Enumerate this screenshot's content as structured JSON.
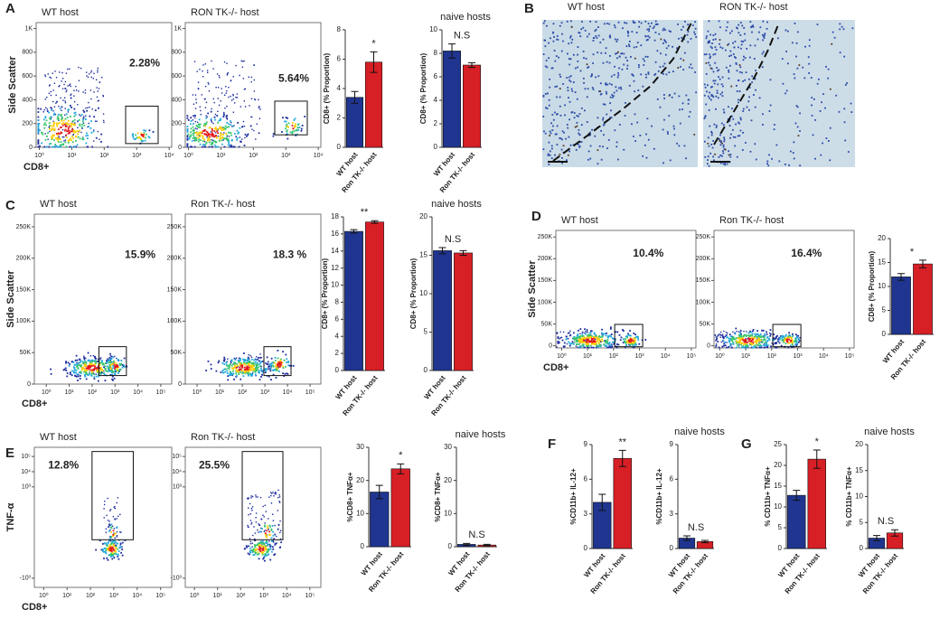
{
  "panel_labels": [
    "A",
    "B",
    "C",
    "D",
    "E",
    "F",
    "G"
  ],
  "micrographs": [
    {
      "title": "WT host"
    },
    {
      "title": "RON TK-/- host"
    }
  ],
  "chart_data": [
    {
      "type": "flow",
      "title": "WT host",
      "gate_label": "2.28%",
      "xlabel": "CD8+",
      "ylabel": "Side Scatter",
      "xscale": "log",
      "xlim": [
        0.8,
        12000
      ],
      "xticks": [
        {
          "value": 1,
          "label": "10⁰"
        },
        {
          "value": 10,
          "label": "10¹"
        },
        {
          "value": 100,
          "label": "10²"
        },
        {
          "value": 1000,
          "label": "10³"
        },
        {
          "value": 10000,
          "label": "10⁴"
        }
      ],
      "ylim": [
        0,
        1050
      ],
      "yticks": [
        0,
        200,
        400,
        600,
        800,
        {
          "value": 1000,
          "label": "1K"
        }
      ]
    },
    {
      "type": "flow",
      "title": "RON TK-/- host",
      "gate_label": "5.64%",
      "xscale": "log",
      "xlim": [
        0.8,
        12000
      ],
      "xticks": [
        {
          "value": 1,
          "label": "10⁰"
        },
        {
          "value": 10,
          "label": "10¹"
        },
        {
          "value": 100,
          "label": "10²"
        },
        {
          "value": 1000,
          "label": "10³"
        },
        {
          "value": 10000,
          "label": "10⁴"
        }
      ],
      "ylim": [
        0,
        1050
      ],
      "yticks": [
        0,
        200,
        400,
        600,
        800,
        {
          "value": 1000,
          "label": "1K"
        }
      ]
    },
    {
      "type": "bar",
      "ylabel": "CD8+ (% Proportion)",
      "categories": [
        "WT host",
        "Ron TK-/- host"
      ],
      "values": [
        3.4,
        5.8
      ],
      "errors": [
        0.4,
        0.7
      ],
      "colors": [
        "#1f3590",
        "#d71f26"
      ],
      "ylim": [
        0,
        8
      ],
      "yticks": [
        0,
        2,
        4,
        6,
        8
      ],
      "annotation": "*"
    },
    {
      "type": "bar",
      "title": "naive hosts",
      "ylabel": "CD8+ (% Proportion)",
      "categories": [
        "WT host",
        "Ron TK-/- host"
      ],
      "values": [
        8.2,
        7.0
      ],
      "errors": [
        0.6,
        0.2
      ],
      "colors": [
        "#1f3590",
        "#d71f26"
      ],
      "ylim": [
        0,
        10
      ],
      "yticks": [
        0,
        2,
        4,
        6,
        8,
        10
      ],
      "annotation": "N.S"
    },
    {
      "type": "flow",
      "title": "WT host",
      "gate_label": "15.9%",
      "xlabel": "CD8+",
      "ylabel": "Side Scatter",
      "xscale": "log",
      "xlim": [
        0.3,
        300000
      ],
      "xticks": [
        {
          "value": 1,
          "label": "10⁰"
        },
        {
          "value": 10,
          "label": "10¹"
        },
        {
          "value": 100,
          "label": "10²"
        },
        {
          "value": 1000,
          "label": "10³"
        },
        {
          "value": 10000,
          "label": "10⁴"
        },
        {
          "value": 100000,
          "label": "10⁵"
        }
      ],
      "ylim": [
        0,
        270000
      ],
      "yticks": [
        0,
        {
          "value": 50000,
          "label": "50K"
        },
        {
          "value": 100000,
          "label": "100K"
        },
        {
          "value": 150000,
          "label": "150K"
        },
        {
          "value": 200000,
          "label": "200K"
        },
        {
          "value": 250000,
          "label": "250K"
        }
      ]
    },
    {
      "type": "flow",
      "title": "Ron TK-/- host",
      "gate_label": "18.3 %",
      "xscale": "log",
      "xlim": [
        0.3,
        300000
      ],
      "xticks": [
        {
          "value": 1,
          "label": "10⁰"
        },
        {
          "value": 10,
          "label": "10¹"
        },
        {
          "value": 100,
          "label": "10²"
        },
        {
          "value": 1000,
          "label": "10³"
        },
        {
          "value": 10000,
          "label": "10⁴"
        },
        {
          "value": 100000,
          "label": "10⁵"
        }
      ],
      "ylim": [
        0,
        270000
      ],
      "yticks": [
        0,
        {
          "value": 50000,
          "label": "50K"
        },
        {
          "value": 100000,
          "label": "100K"
        },
        {
          "value": 150000,
          "label": "150K"
        },
        {
          "value": 200000,
          "label": "200K"
        },
        {
          "value": 250000,
          "label": "250K"
        }
      ]
    },
    {
      "type": "bar",
      "ylabel": "CD8+ (% Proportion)",
      "categories": [
        "WT host",
        "Ron TK-/- host"
      ],
      "values": [
        16.3,
        17.4
      ],
      "errors": [
        0.2,
        0.15
      ],
      "colors": [
        "#1f3590",
        "#d71f26"
      ],
      "ylim": [
        0,
        18
      ],
      "yticks": [
        0,
        2,
        4,
        6,
        8,
        10,
        12,
        14,
        16,
        18
      ],
      "annotation": "**"
    },
    {
      "type": "bar",
      "title": "naive hosts",
      "ylabel": "CD8+ (% Proportion)",
      "categories": [
        "WT host",
        "Ron TK-/- host"
      ],
      "values": [
        15.6,
        15.3
      ],
      "errors": [
        0.4,
        0.3
      ],
      "colors": [
        "#1f3590",
        "#d71f26"
      ],
      "ylim": [
        0,
        20
      ],
      "yticks": [
        0,
        5,
        10,
        15,
        20
      ],
      "annotation": "N.S"
    },
    {
      "type": "flow",
      "title": "WT host",
      "gate_label": "10.4%",
      "xlabel": "CD8+",
      "ylabel": "Side Scatter",
      "xscale": "log",
      "xlim": [
        0.6,
        150000
      ],
      "xticks": [
        {
          "value": 1,
          "label": "10⁰"
        },
        {
          "value": 10,
          "label": "10¹"
        },
        {
          "value": 100,
          "label": "10²"
        },
        {
          "value": 1000,
          "label": "10³"
        },
        {
          "value": 10000,
          "label": "10⁴"
        },
        {
          "value": 100000,
          "label": "10⁵"
        }
      ],
      "ylim": [
        -5000,
        265000
      ],
      "yticks": [
        0,
        {
          "value": 50000,
          "label": "50K"
        },
        {
          "value": 100000,
          "label": "100K"
        },
        {
          "value": 150000,
          "label": "150K"
        },
        {
          "value": 200000,
          "label": "200K"
        },
        {
          "value": 250000,
          "label": "250K"
        }
      ]
    },
    {
      "type": "flow",
      "title": "Ron TK-/- host",
      "gate_label": "16.4%",
      "xscale": "log",
      "xlim": [
        0.6,
        150000
      ],
      "xticks": [
        {
          "value": 1,
          "label": "10⁰"
        },
        {
          "value": 10,
          "label": "10¹"
        },
        {
          "value": 100,
          "label": "10²"
        },
        {
          "value": 1000,
          "label": "10³"
        },
        {
          "value": 10000,
          "label": "10⁴"
        },
        {
          "value": 100000,
          "label": "10⁵"
        }
      ],
      "ylim": [
        -5000,
        265000
      ],
      "yticks": [
        0,
        {
          "value": 50000,
          "label": "50K"
        },
        {
          "value": 100000,
          "label": "100K"
        },
        {
          "value": 150000,
          "label": "150K"
        },
        {
          "value": 200000,
          "label": "200K"
        },
        {
          "value": 250000,
          "label": "250K"
        }
      ]
    },
    {
      "type": "bar",
      "ylabel": "CD8+ (% Proportion)",
      "categories": [
        "WT host",
        "Ron TK-/- host"
      ],
      "values": [
        12.0,
        14.7
      ],
      "errors": [
        0.7,
        0.8
      ],
      "colors": [
        "#1f3590",
        "#d71f26"
      ],
      "ylim": [
        0,
        20
      ],
      "yticks": [
        0,
        5,
        10,
        15,
        20
      ],
      "annotation": "*"
    },
    {
      "type": "flow",
      "title": "WT host",
      "gate_label": "12.8%",
      "xlabel": "CD8+",
      "ylabel": "TNF-α",
      "xscale": "log",
      "yscale": "symlog",
      "xlim": [
        0.4,
        300000
      ],
      "xticks": [
        {
          "value": 1,
          "label": "10⁰"
        },
        {
          "value": 10,
          "label": "10¹"
        },
        {
          "value": 100,
          "label": "10²"
        },
        {
          "value": 1000,
          "label": "10³"
        },
        {
          "value": 10000,
          "label": "10⁴"
        },
        {
          "value": 100000,
          "label": "10⁵"
        }
      ],
      "ylim": [
        -4000,
        400000
      ],
      "yticks": [
        {
          "value": -1000,
          "label": "-10³"
        },
        {
          "value": 1000,
          "label": "10³"
        },
        {
          "value": 10000,
          "label": "10⁴"
        },
        {
          "value": 100000,
          "label": "10⁵"
        }
      ]
    },
    {
      "type": "flow",
      "title": "Ron TK-/- host",
      "gate_label": "25.5%",
      "xscale": "log",
      "yscale": "symlog",
      "xlim": [
        0.4,
        300000
      ],
      "xticks": [
        {
          "value": 1,
          "label": "10⁰"
        },
        {
          "value": 10,
          "label": "10¹"
        },
        {
          "value": 100,
          "label": "10²"
        },
        {
          "value": 1000,
          "label": "10³"
        },
        {
          "value": 10000,
          "label": "10⁴"
        },
        {
          "value": 100000,
          "label": "10⁵"
        }
      ],
      "ylim": [
        -4000,
        400000
      ],
      "yticks": [
        {
          "value": -1000,
          "label": "-10³"
        },
        {
          "value": 1000,
          "label": "10³"
        },
        {
          "value": 10000,
          "label": "10⁴"
        },
        {
          "value": 100000,
          "label": "10⁵"
        }
      ]
    },
    {
      "type": "bar",
      "ylabel": "%CD8+ TNFα+",
      "categories": [
        "WT host",
        "Ron TK-/- host"
      ],
      "values": [
        16.5,
        23.5
      ],
      "errors": [
        2,
        1.5
      ],
      "colors": [
        "#1f3590",
        "#d71f26"
      ],
      "ylim": [
        0,
        30
      ],
      "yticks": [
        0,
        10,
        20,
        30
      ],
      "annotation": "*"
    },
    {
      "type": "bar",
      "title": "naive hosts",
      "ylabel": "%CD8+ TNFα+",
      "categories": [
        "WT host",
        "Ron TK-/- host"
      ],
      "values": [
        0.7,
        0.5
      ],
      "errors": [
        0.3,
        0.2
      ],
      "colors": [
        "#1f3590",
        "#d71f26"
      ],
      "ylim": [
        0,
        30
      ],
      "yticks": [
        0,
        10,
        20,
        30
      ],
      "annotation": "N.S"
    },
    {
      "type": "bar",
      "ylabel": "%CD11b+ IL-12+",
      "categories": [
        "WT host",
        "Ron TK-/- host"
      ],
      "values": [
        4.0,
        7.8
      ],
      "errors": [
        0.7,
        0.7
      ],
      "colors": [
        "#1f3590",
        "#d71f26"
      ],
      "ylim": [
        0,
        9
      ],
      "yticks": [
        0,
        3,
        6,
        9
      ],
      "annotation": "**"
    },
    {
      "type": "bar",
      "title": "naive hosts",
      "ylabel": "%CD11b+ IL-12+",
      "categories": [
        "WT host",
        "Ron TK-/- host"
      ],
      "values": [
        0.9,
        0.6
      ],
      "errors": [
        0.2,
        0.1
      ],
      "colors": [
        "#1f3590",
        "#d71f26"
      ],
      "ylim": [
        0,
        9
      ],
      "yticks": [
        0,
        3,
        6,
        9
      ],
      "annotation": "N.S"
    },
    {
      "type": "bar",
      "ylabel": "% CD11b+ TNFα+",
      "categories": [
        "WT host",
        "Ron TK-/- host"
      ],
      "values": [
        12.8,
        21.5
      ],
      "errors": [
        1.2,
        2.2
      ],
      "colors": [
        "#1f3590",
        "#d71f26"
      ],
      "ylim": [
        0,
        25
      ],
      "yticks": [
        0,
        5,
        10,
        15,
        20,
        25
      ],
      "annotation": "*"
    },
    {
      "type": "bar",
      "title": "naive hosts",
      "ylabel": "% CD11b+ TNFα+",
      "categories": [
        "WT host",
        "Ron TK-/- host"
      ],
      "values": [
        2.0,
        3.0
      ],
      "errors": [
        0.5,
        0.6
      ],
      "colors": [
        "#1f3590",
        "#d71f26"
      ],
      "ylim": [
        0,
        20
      ],
      "yticks": [
        0,
        5,
        10,
        15,
        20
      ],
      "annotation": "N.S"
    }
  ]
}
